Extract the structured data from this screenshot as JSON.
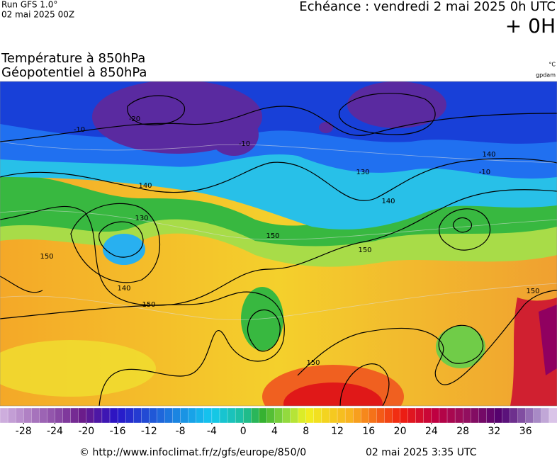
{
  "header": {
    "run": "Run GFS 1.0°",
    "run_date": "02 mai 2025 00Z",
    "echeance": "Echéance : vendredi 2 mai 2025 0h UTC",
    "offset": "+ 0H",
    "title_temperature": "Température à 850hPa",
    "title_geopotential": "Géopotentiel à 850hPa",
    "unit_temperature": "°C",
    "unit_geopotential": "gpdam"
  },
  "map": {
    "contour_labels": [
      "150",
      "140",
      "130",
      "140",
      "150",
      "150",
      "150",
      "130",
      "140",
      "150",
      "140",
      "150",
      "-20",
      "-10",
      "-10",
      "-10"
    ]
  },
  "colorbar": {
    "lim": [
      -31,
      40
    ],
    "ticks": [
      -28,
      -24,
      -20,
      -16,
      -12,
      -8,
      -4,
      0,
      4,
      8,
      12,
      16,
      20,
      24,
      28,
      32,
      36
    ]
  },
  "footer": {
    "source": "© http://www.infoclimat.fr/z/gfs/europe/850/0",
    "generated": "02 mai 2025  3:35 UTC"
  }
}
